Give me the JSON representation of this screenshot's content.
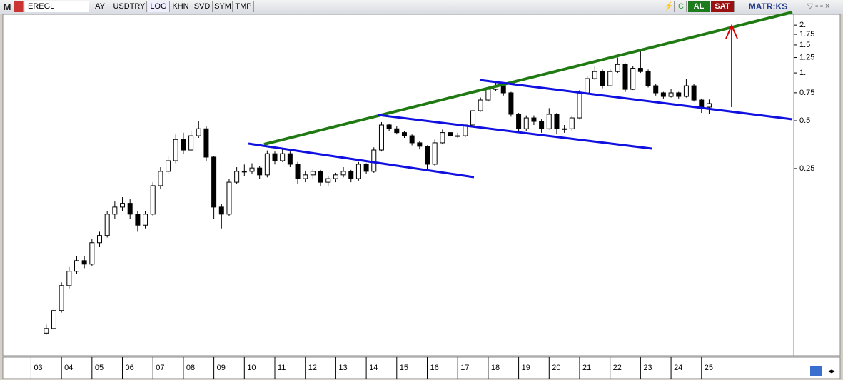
{
  "toolbar": {
    "menu": "M",
    "symbol": "EREGL",
    "items": [
      "AY",
      "USDTRY",
      "LOG",
      "KHN",
      "SVD",
      "SYM",
      "TMP"
    ],
    "buy": "AL",
    "sell": "SAT",
    "brand": "MATR:KS"
  },
  "chart_data": {
    "type": "candlestick",
    "yscale": "log",
    "up_color": "#ffffff",
    "down_color": "#000000",
    "x": [
      2003.5,
      2003.75,
      2004,
      2004.25,
      2004.5,
      2004.75,
      2005,
      2005.25,
      2005.5,
      2005.75,
      2006,
      2006.25,
      2006.5,
      2006.75,
      2007,
      2007.25,
      2007.5,
      2007.75,
      2008,
      2008.25,
      2008.5,
      2008.75,
      2009,
      2009.25,
      2009.5,
      2009.75,
      2010,
      2010.25,
      2010.5,
      2010.75,
      2011,
      2011.25,
      2011.5,
      2011.75,
      2012,
      2012.25,
      2012.5,
      2012.75,
      2013,
      2013.25,
      2013.5,
      2013.75,
      2014,
      2014.25,
      2014.5,
      2014.75,
      2015,
      2015.25,
      2015.5,
      2015.75,
      2016,
      2016.25,
      2016.5,
      2016.75,
      2017,
      2017.25,
      2017.5,
      2017.75,
      2018,
      2018.25,
      2018.5,
      2018.75,
      2019,
      2019.25,
      2019.5,
      2019.75,
      2020,
      2020.25,
      2020.5,
      2020.75,
      2021,
      2021.25,
      2021.5,
      2021.75,
      2022,
      2022.25,
      2022.5,
      2022.75,
      2023,
      2023.25,
      2023.5,
      2023.75,
      2024,
      2024.25,
      2024.5,
      2024.75,
      2025,
      2025.25
    ],
    "open": [
      0.023,
      0.0246,
      0.0319,
      0.0458,
      0.0564,
      0.0658,
      0.0625,
      0.0853,
      0.0947,
      0.129,
      0.143,
      0.151,
      0.129,
      0.11,
      0.129,
      0.195,
      0.24,
      0.28,
      0.381,
      0.327,
      0.402,
      0.445,
      0.295,
      0.143,
      0.129,
      0.205,
      0.24,
      0.24,
      0.252,
      0.228,
      0.31,
      0.28,
      0.31,
      0.266,
      0.216,
      0.228,
      0.24,
      0.205,
      0.216,
      0.228,
      0.24,
      0.216,
      0.266,
      0.24,
      0.327,
      0.47,
      0.445,
      0.421,
      0.402,
      0.363,
      0.345,
      0.266,
      0.363,
      0.421,
      0.402,
      0.402,
      0.47,
      0.578,
      0.675,
      0.788,
      0.83,
      0.749,
      0.549,
      0.445,
      0.521,
      0.495,
      0.445,
      0.549,
      0.445,
      0.445,
      0.521,
      0.749,
      0.921,
      1.02,
      0.83,
      1.02,
      1.13,
      0.788,
      1.07,
      1.02,
      0.83,
      0.749,
      0.711,
      0.749,
      0.711,
      0.83,
      0.675,
      0.609
    ],
    "high": [
      0.026,
      0.0335,
      0.048,
      0.06,
      0.07,
      0.07,
      0.09,
      0.1,
      0.135,
      0.155,
      0.165,
      0.16,
      0.135,
      0.135,
      0.205,
      0.255,
      0.3,
      0.41,
      0.42,
      0.43,
      0.5,
      0.46,
      0.3,
      0.15,
      0.215,
      0.255,
      0.265,
      0.27,
      0.26,
      0.325,
      0.32,
      0.335,
      0.32,
      0.275,
      0.24,
      0.25,
      0.245,
      0.225,
      0.235,
      0.255,
      0.245,
      0.275,
      0.27,
      0.34,
      0.49,
      0.48,
      0.46,
      0.43,
      0.41,
      0.37,
      0.35,
      0.38,
      0.44,
      0.43,
      0.42,
      0.48,
      0.6,
      0.7,
      0.82,
      0.88,
      0.85,
      0.76,
      0.56,
      0.54,
      0.54,
      0.51,
      0.6,
      0.56,
      0.47,
      0.54,
      0.78,
      0.96,
      1.1,
      1.05,
      1.06,
      1.25,
      1.15,
      1.1,
      1.4,
      1.05,
      0.85,
      0.76,
      0.79,
      0.76,
      0.92,
      0.85,
      0.69,
      0.68
    ],
    "low": [
      0.0225,
      0.024,
      0.031,
      0.044,
      0.054,
      0.059,
      0.061,
      0.08,
      0.092,
      0.12,
      0.135,
      0.12,
      0.1,
      0.105,
      0.125,
      0.185,
      0.23,
      0.27,
      0.31,
      0.32,
      0.39,
      0.28,
      0.12,
      0.105,
      0.125,
      0.2,
      0.225,
      0.23,
      0.215,
      0.22,
      0.265,
      0.275,
      0.255,
      0.2,
      0.205,
      0.215,
      0.195,
      0.195,
      0.205,
      0.22,
      0.205,
      0.21,
      0.23,
      0.235,
      0.32,
      0.43,
      0.41,
      0.39,
      0.35,
      0.33,
      0.245,
      0.26,
      0.355,
      0.39,
      0.39,
      0.395,
      0.46,
      0.57,
      0.66,
      0.77,
      0.72,
      0.53,
      0.42,
      0.43,
      0.47,
      0.42,
      0.44,
      0.41,
      0.42,
      0.43,
      0.51,
      0.74,
      0.9,
      0.8,
      0.82,
      1.0,
      0.76,
      0.78,
      1.0,
      0.81,
      0.72,
      0.69,
      0.7,
      0.69,
      0.7,
      0.66,
      0.56,
      0.55
    ],
    "close": [
      0.0246,
      0.0319,
      0.0458,
      0.0564,
      0.0658,
      0.0625,
      0.0853,
      0.0947,
      0.129,
      0.143,
      0.151,
      0.129,
      0.11,
      0.129,
      0.195,
      0.24,
      0.28,
      0.381,
      0.327,
      0.402,
      0.445,
      0.295,
      0.143,
      0.129,
      0.205,
      0.24,
      0.24,
      0.252,
      0.228,
      0.31,
      0.28,
      0.31,
      0.266,
      0.216,
      0.228,
      0.24,
      0.205,
      0.216,
      0.228,
      0.24,
      0.216,
      0.266,
      0.24,
      0.327,
      0.47,
      0.445,
      0.421,
      0.402,
      0.363,
      0.345,
      0.266,
      0.363,
      0.421,
      0.402,
      0.402,
      0.47,
      0.578,
      0.675,
      0.788,
      0.83,
      0.749,
      0.549,
      0.445,
      0.521,
      0.495,
      0.445,
      0.549,
      0.445,
      0.445,
      0.521,
      0.749,
      0.921,
      1.02,
      0.83,
      1.02,
      1.13,
      0.788,
      1.07,
      1.02,
      0.83,
      0.749,
      0.711,
      0.749,
      0.711,
      0.83,
      0.675,
      0.609,
      0.641
    ],
    "xlim": [
      2002.17,
      2027.98
    ],
    "ylim": [
      0.018,
      2.34
    ],
    "yticks": [
      {
        "value": 2,
        "label": "2."
      },
      1.75,
      1.5,
      1.25,
      {
        "value": 1,
        "label": "1."
      },
      0.75,
      0.5,
      0.25
    ],
    "xticks": [
      {
        "value": 2003,
        "label": "03"
      },
      {
        "value": 2004,
        "label": "04"
      },
      {
        "value": 2005,
        "label": "05"
      },
      {
        "value": 2006,
        "label": "06"
      },
      {
        "value": 2007,
        "label": "07"
      },
      {
        "value": 2008,
        "label": "08"
      },
      {
        "value": 2009,
        "label": "09"
      },
      {
        "value": 2010,
        "label": "10"
      },
      {
        "value": 2011,
        "label": "11"
      },
      {
        "value": 2012,
        "label": "12"
      },
      {
        "value": 2013,
        "label": "13"
      },
      {
        "value": 2014,
        "label": "14"
      },
      {
        "value": 2015,
        "label": "15"
      },
      {
        "value": 2016,
        "label": "16"
      },
      {
        "value": 2017,
        "label": "17"
      },
      {
        "value": 2018,
        "label": "18"
      },
      {
        "value": 2019,
        "label": "19"
      },
      {
        "value": 2020,
        "label": "20"
      },
      {
        "value": 2021,
        "label": "21"
      },
      {
        "value": 2022,
        "label": "22"
      },
      {
        "value": 2023,
        "label": "23"
      },
      {
        "value": 2024,
        "label": "24"
      },
      {
        "value": 2025,
        "label": "25"
      }
    ]
  }
}
